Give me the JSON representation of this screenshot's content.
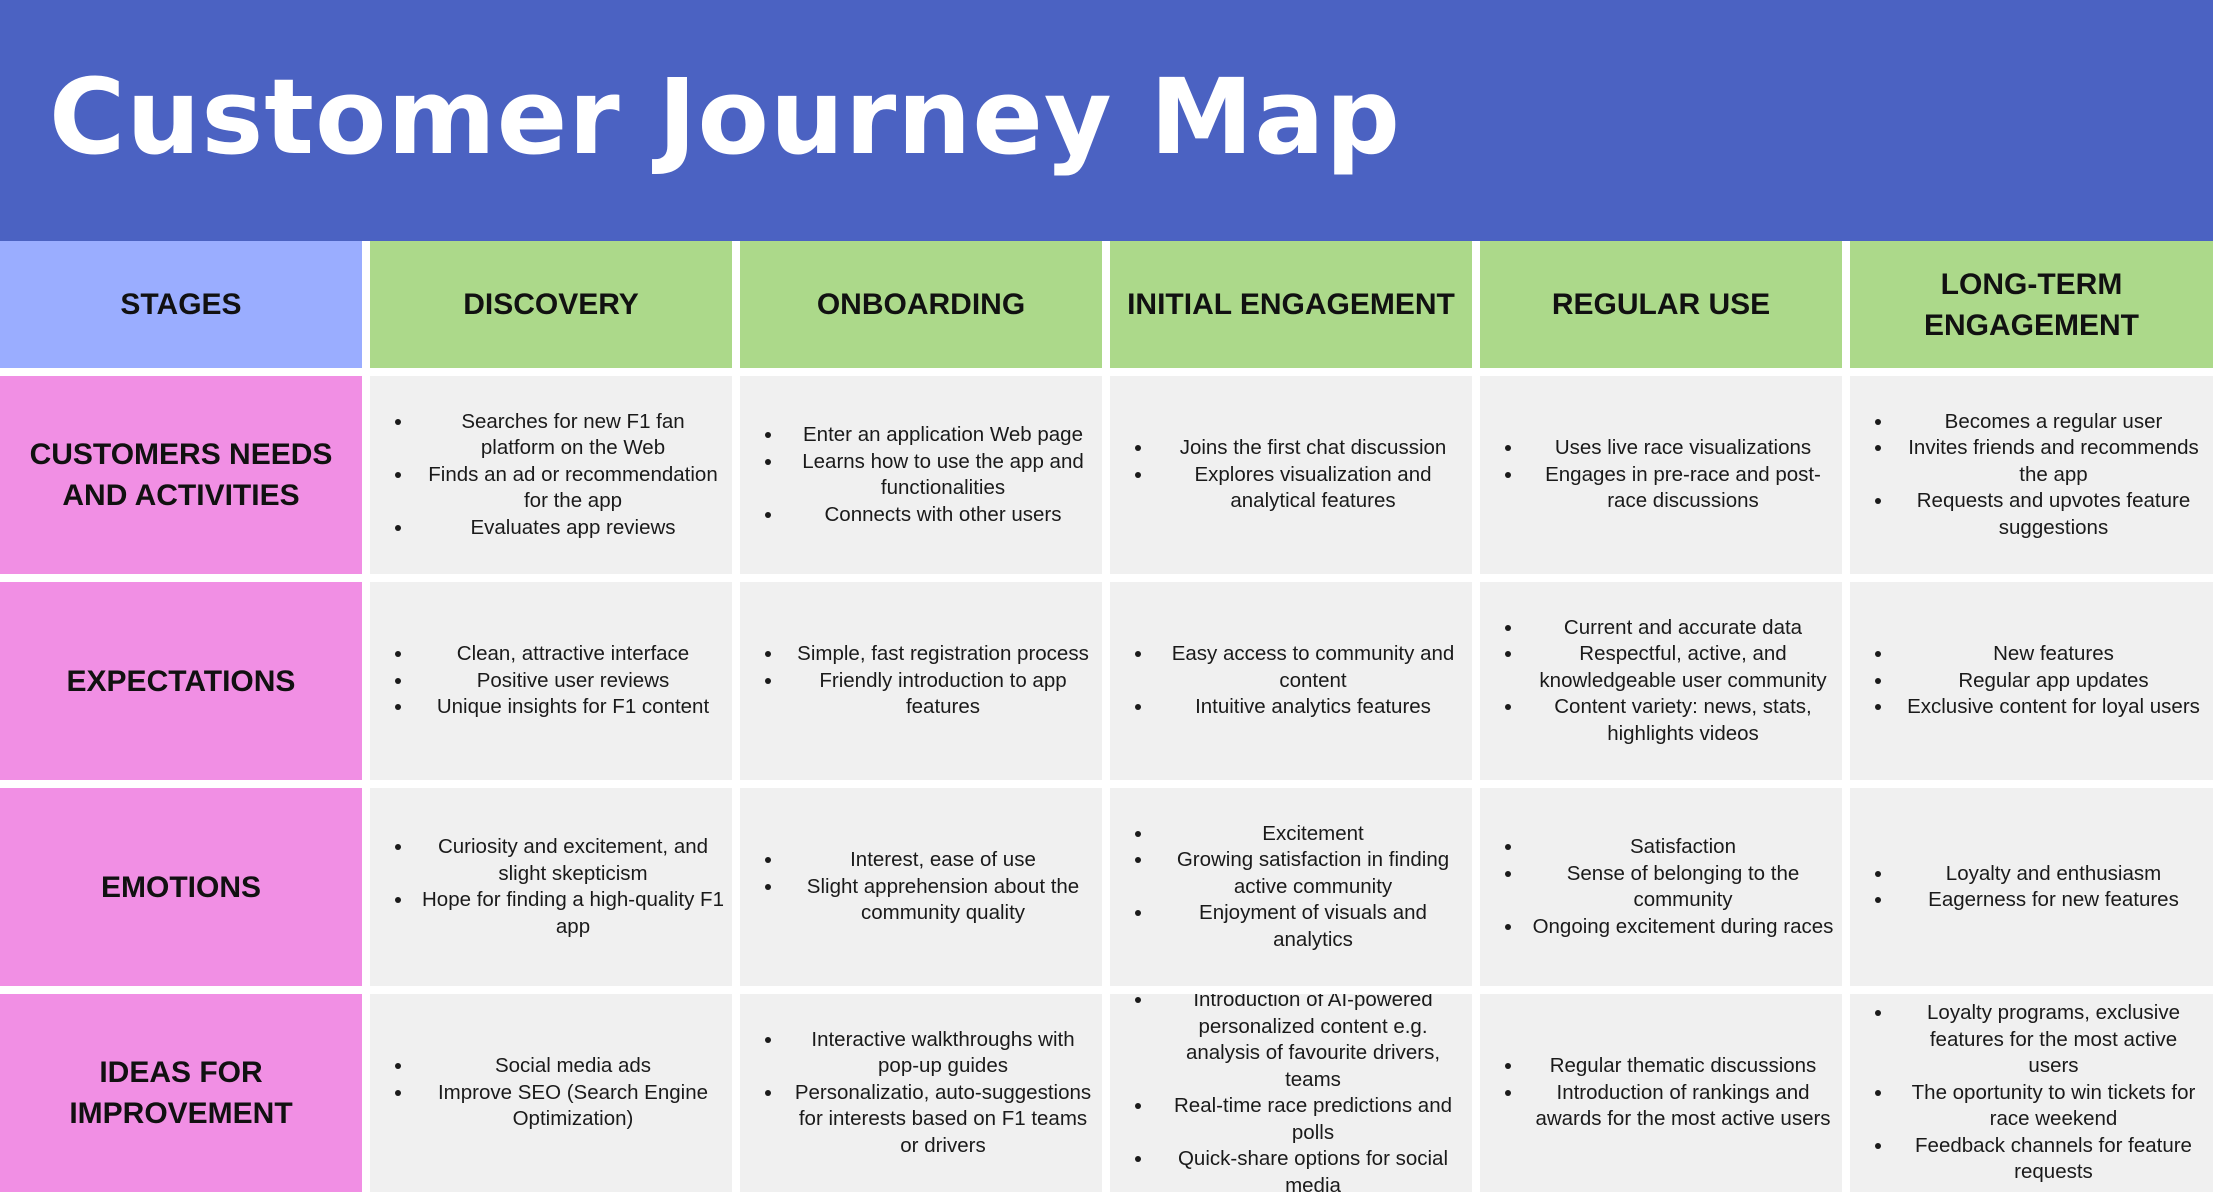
{
  "title": "Customer Journey Map",
  "colors": {
    "banner": "#4b62c2",
    "stages_header": "#9aadff",
    "stage_header": "#acd98a",
    "row_label": "#f18fe4",
    "content_cell": "#f0f0f0"
  },
  "stages_label": "STAGES",
  "stages": [
    "DISCOVERY",
    "ONBOARDING",
    "INITIAL ENGAGEMENT",
    "REGULAR USE",
    "LONG-TERM ENGAGEMENT"
  ],
  "rows": [
    {
      "label": "CUSTOMERS NEEDS AND ACTIVITIES",
      "cells": [
        [
          "Searches for new F1 fan platform on the Web",
          "Finds an ad or recommendation for the app",
          "Evaluates app reviews"
        ],
        [
          "Enter an application Web page",
          "Learns how to use the app and functionalities",
          "Connects with other users"
        ],
        [
          "Joins the first chat discussion",
          "Explores visualization and analytical features"
        ],
        [
          "Uses live race visualizations",
          "Engages in pre-race and post-race discussions"
        ],
        [
          "Becomes a regular user",
          "Invites friends and recommends the app",
          "Requests and upvotes feature suggestions"
        ]
      ]
    },
    {
      "label": "EXPECTATIONS",
      "cells": [
        [
          "Clean, attractive interface",
          "Positive user reviews",
          "Unique insights for F1 content"
        ],
        [
          "Simple, fast registration process",
          "Friendly introduction to app features"
        ],
        [
          "Easy access to community and content",
          "Intuitive analytics features"
        ],
        [
          "Current and accurate data",
          "Respectful, active, and knowledgeable user community",
          "Content variety: news, stats, highlights videos"
        ],
        [
          "New features",
          "Regular app updates",
          "Exclusive content for loyal users"
        ]
      ]
    },
    {
      "label": "EMOTIONS",
      "cells": [
        [
          "Curiosity and excitement, and slight skepticism",
          "Hope for finding a high-quality F1 app"
        ],
        [
          "Interest, ease of use",
          "Slight apprehension about the community quality"
        ],
        [
          "Excitement",
          "Growing satisfaction in finding active community",
          "Enjoyment of visuals and analytics"
        ],
        [
          "Satisfaction",
          "Sense of belonging to the community",
          "Ongoing excitement during races"
        ],
        [
          "Loyalty and enthusiasm",
          "Eagerness for new features"
        ]
      ]
    },
    {
      "label": "IDEAS FOR IMPROVEMENT",
      "cells": [
        [
          "Social media ads",
          "Improve SEO (Search Engine Optimization)"
        ],
        [
          "Interactive walkthroughs with pop-up guides",
          "Personalizatio, auto-suggestions for interests based on F1 teams or drivers"
        ],
        [
          "Introduction of AI-powered personalized content e.g. analysis of favourite drivers, teams",
          "Real-time race predictions and polls",
          "Quick-share options for social media"
        ],
        [
          "Regular thematic discussions",
          "Introduction of rankings and awards for the most active users"
        ],
        [
          "Loyalty programs, exclusive features for the most active users",
          "The oportunity to win tickets for race weekend",
          "Feedback channels for feature requests"
        ]
      ]
    }
  ]
}
